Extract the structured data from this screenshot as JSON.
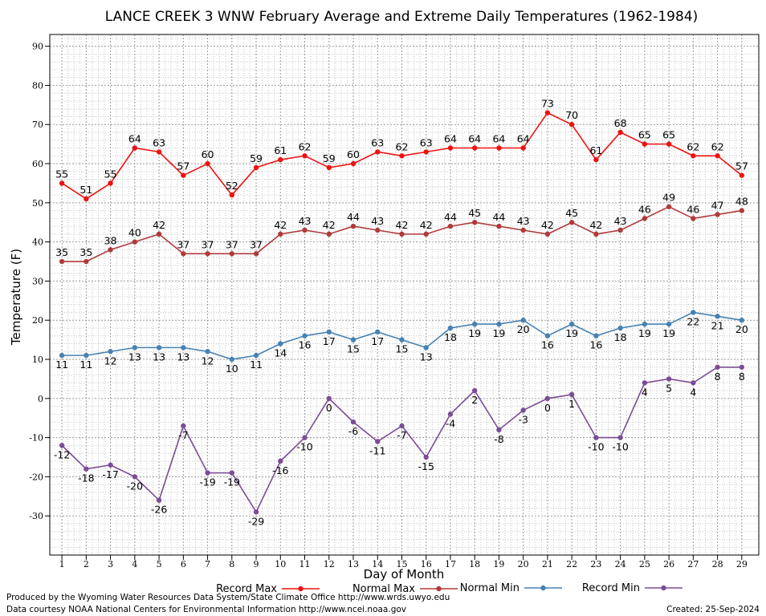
{
  "chart_data": {
    "type": "line",
    "title": "LANCE CREEK 3 WNW February Average and Extreme Daily Temperatures (1962-1984)",
    "xlabel": "Day of Month",
    "ylabel": "Temperature (F)",
    "ylim": [
      -40,
      93
    ],
    "y_ticks": [
      -30,
      -20,
      -10,
      0,
      10,
      20,
      30,
      40,
      50,
      60,
      70,
      80,
      90
    ],
    "x_ticks": [
      1,
      2,
      3,
      4,
      5,
      6,
      7,
      8,
      9,
      10,
      11,
      12,
      13,
      14,
      15,
      16,
      17,
      18,
      19,
      20,
      21,
      22,
      23,
      24,
      25,
      26,
      27,
      28,
      29
    ],
    "grid": true,
    "x": [
      1,
      2,
      3,
      4,
      5,
      6,
      7,
      8,
      9,
      10,
      11,
      12,
      13,
      14,
      15,
      16,
      17,
      18,
      19,
      20,
      21,
      22,
      23,
      24,
      25,
      26,
      27,
      28,
      29
    ],
    "series": [
      {
        "name": "Record Max",
        "color": "#ee1111",
        "label_position": "above",
        "values": [
          55,
          51,
          55,
          64,
          63,
          57,
          60,
          52,
          59,
          61,
          62,
          59,
          60,
          63,
          62,
          63,
          64,
          64,
          64,
          64,
          73,
          70,
          61,
          68,
          65,
          65,
          62,
          62,
          57
        ]
      },
      {
        "name": "Normal Max",
        "color": "#b03a3a",
        "label_position": "above",
        "values": [
          35,
          35,
          38,
          40,
          42,
          37,
          37,
          37,
          37,
          42,
          43,
          42,
          44,
          43,
          42,
          42,
          44,
          45,
          44,
          43,
          42,
          45,
          42,
          43,
          46,
          49,
          46,
          47,
          48
        ]
      },
      {
        "name": "Normal Min",
        "color": "#4682b4",
        "label_position": "below",
        "values": [
          11,
          11,
          12,
          13,
          13,
          13,
          12,
          10,
          11,
          14,
          16,
          17,
          15,
          17,
          15,
          13,
          18,
          19,
          19,
          20,
          16,
          19,
          16,
          18,
          19,
          19,
          22,
          21,
          20
        ]
      },
      {
        "name": "Record Min",
        "color": "#7b4d96",
        "label_position": "below",
        "values": [
          -12,
          -18,
          -17,
          -20,
          -26,
          -7,
          -19,
          -19,
          -29,
          -16,
          -10,
          0,
          -6,
          -11,
          -7,
          -15,
          -4,
          2,
          -8,
          -3,
          0,
          1,
          -10,
          -10,
          4,
          5,
          4,
          8,
          8
        ]
      }
    ],
    "legend_placement": "bottom"
  },
  "footer": {
    "produced_by": "Produced by the Wyoming Water Resources Data System/State Climate Office http://www.wrds.uwyo.edu",
    "data_courtesy": "Data courtesy NOAA National Centers for Environmental Information http://www.ncei.noaa.gov",
    "created": "Created:  25-Sep-2024"
  }
}
